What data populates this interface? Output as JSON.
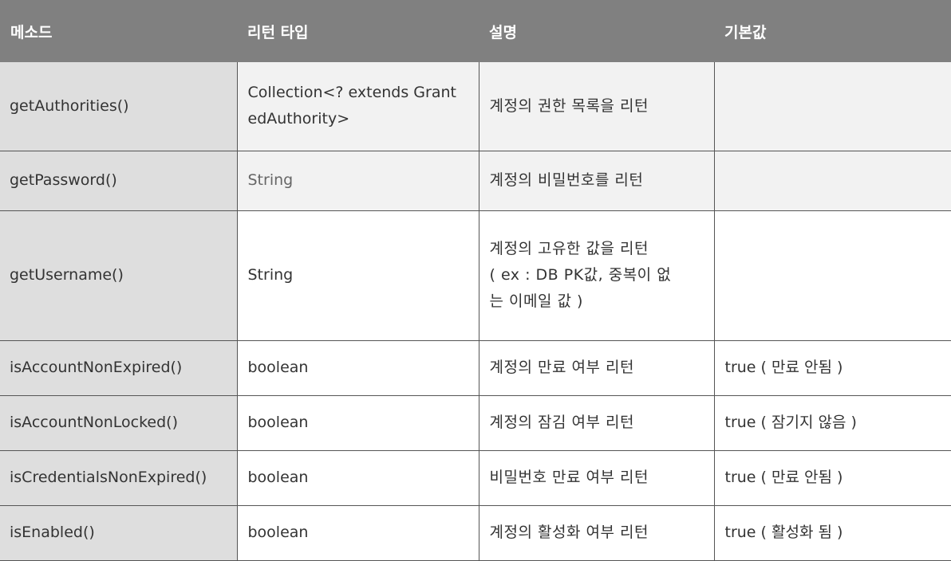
{
  "headers": [
    "메소드",
    "리턴 타입",
    "설명",
    "기본값"
  ],
  "rows": [
    {
      "method": "getAuthorities()",
      "return_type": "Collection<? extends GrantedAuthority>",
      "return_type_lines": [
        "Collection<? extends Grant",
        "edAuthority>"
      ],
      "description": "계정의 권한 목록을 리턴",
      "description_lines": [
        "계정의 권한 목록을 리턴"
      ],
      "default": ""
    },
    {
      "method": "getPassword()",
      "return_type": "String",
      "return_type_lines": [
        "String"
      ],
      "description": "계정의 비밀번호를 리턴",
      "description_lines": [
        "계정의 비밀번호를 리턴"
      ],
      "default": ""
    },
    {
      "method": "getUsername()",
      "return_type": "String",
      "return_type_lines": [
        "String"
      ],
      "description": "계정의 고유한 값을 리턴 ( ex : DB PK값, 중복이 없는 이메일 값 )",
      "description_lines": [
        "계정의 고유한 값을 리턴",
        "( ex : DB PK값, 중복이 없",
        "는 이메일 값 )"
      ],
      "default": ""
    },
    {
      "method": "isAccountNonExpired()",
      "return_type": "boolean",
      "return_type_lines": [
        "boolean"
      ],
      "description": "계정의 만료 여부 리턴",
      "description_lines": [
        "계정의 만료 여부 리턴"
      ],
      "default": "true ( 만료 안됨 )"
    },
    {
      "method": "isAccountNonLocked()",
      "return_type": "boolean",
      "return_type_lines": [
        "boolean"
      ],
      "description": "계정의 잠김 여부 리턴",
      "description_lines": [
        "계정의 잠김 여부 리턴"
      ],
      "default": "true ( 잠기지 않음 )"
    },
    {
      "method": "isCredentialsNonExpired()",
      "return_type": "boolean",
      "return_type_lines": [
        "boolean"
      ],
      "description": "비밀번호 만료 여부 리턴",
      "description_lines": [
        "비밀번호 만료 여부 리턴"
      ],
      "default": "true ( 만료 안됨 )"
    },
    {
      "method": "isEnabled()",
      "return_type": "boolean",
      "return_type_lines": [
        "boolean"
      ],
      "description": "계정의 활성화 여부 리턴",
      "description_lines": [
        "계정의 활성화 여부 리턴"
      ],
      "default": "true ( 활성화 됨 )"
    }
  ]
}
